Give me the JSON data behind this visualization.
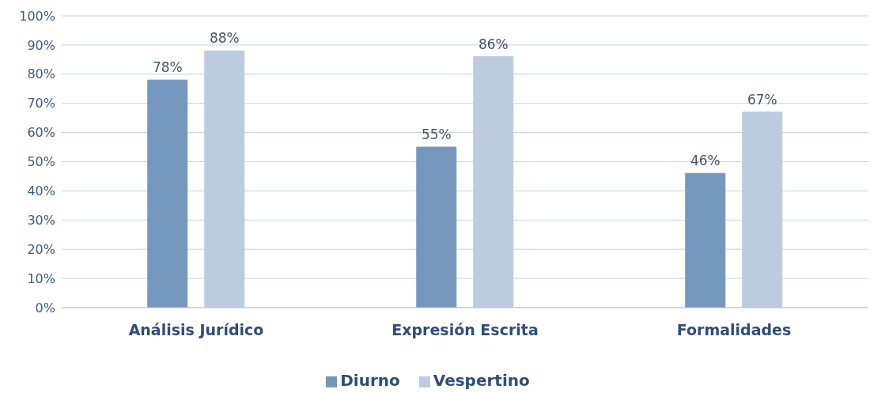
{
  "chart_data": {
    "type": "bar",
    "categories": [
      "Análisis Jurídico",
      "Expresión Escrita",
      "Formalidades"
    ],
    "series": [
      {
        "name": "Diurno",
        "color": "#7596bd",
        "values": [
          78,
          55,
          46
        ],
        "value_labels": [
          "78%",
          "55%",
          "46%"
        ]
      },
      {
        "name": "Vespertino",
        "color": "#bccbdd",
        "values": [
          88,
          86,
          67
        ],
        "value_labels": [
          "88%",
          "86%",
          "67%"
        ]
      }
    ],
    "ylim": [
      0,
      100
    ],
    "yticks": [
      {
        "value": 0,
        "label": "0%"
      },
      {
        "value": 10,
        "label": "10%"
      },
      {
        "value": 20,
        "label": "20%"
      },
      {
        "value": 30,
        "label": "30%"
      },
      {
        "value": 40,
        "label": "40%"
      },
      {
        "value": 50,
        "label": "50%"
      },
      {
        "value": 60,
        "label": "60%"
      },
      {
        "value": 70,
        "label": "70%"
      },
      {
        "value": 80,
        "label": "80%"
      },
      {
        "value": 90,
        "label": "90%"
      },
      {
        "value": 100,
        "label": "100%"
      }
    ],
    "grid": "y",
    "legend": "bottom"
  }
}
